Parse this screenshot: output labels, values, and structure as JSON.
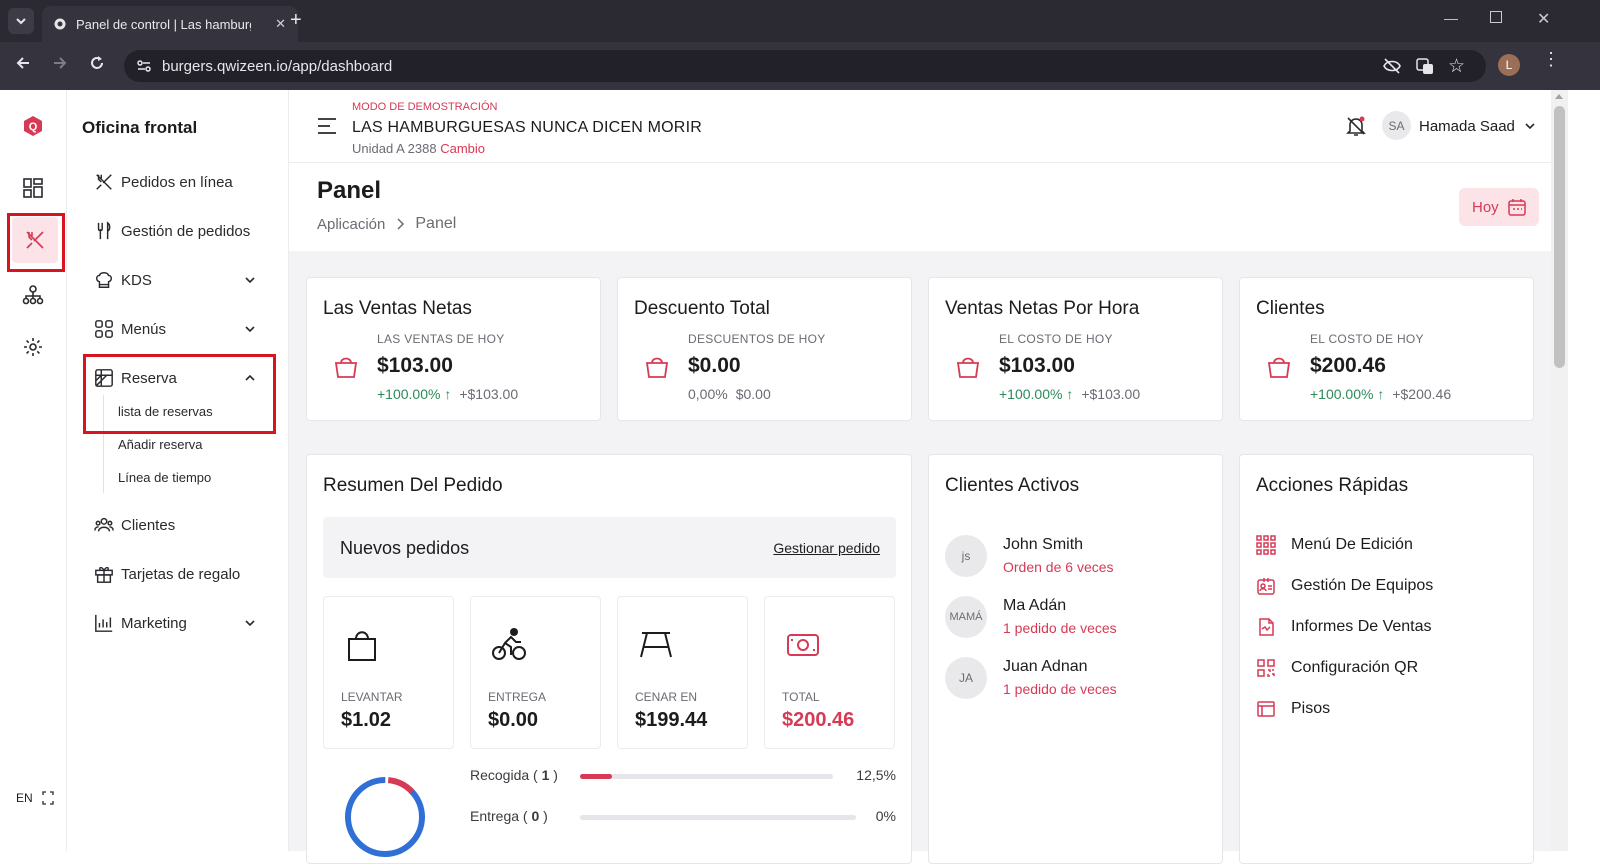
{
  "browser": {
    "tab_title": "Panel de control | Las hamburguesas nunca dicen morir",
    "url": "burgers.qwizeen.io/app/dashboard",
    "profile_initial": "L"
  },
  "sidebar": {
    "title": "Oficina frontal",
    "items": [
      {
        "label": "Pedidos en línea",
        "icon": "utensils-crossed-icon"
      },
      {
        "label": "Gestión de pedidos",
        "icon": "fork-knife-icon"
      },
      {
        "label": "KDS",
        "icon": "chef-hat-icon"
      },
      {
        "label": "Menús",
        "icon": "grid-icon"
      },
      {
        "label": "Reserva",
        "icon": "table-icon"
      },
      {
        "label": "Clientes",
        "icon": "users-icon"
      },
      {
        "label": "Tarjetas de regalo",
        "icon": "gift-icon"
      },
      {
        "label": "Marketing",
        "icon": "chart-icon"
      }
    ],
    "reserva_sub": [
      "lista de reservas",
      "Añadir reserva",
      "Línea de tiempo"
    ],
    "lang": "EN"
  },
  "header": {
    "demo_mode": "MODO DE DEMOSTRACIÓN",
    "restaurant": "LAS HAMBURGUESAS NUNCA DICEN MORIR",
    "unit": "Unidad A 2388",
    "change": "Cambio",
    "user_initials": "SA",
    "user_name": "Hamada Saad"
  },
  "page": {
    "title": "Panel",
    "breadcrumb_root": "Aplicación",
    "breadcrumb_current": "Panel",
    "today_button": "Hoy"
  },
  "kpis": [
    {
      "title": "Las Ventas Netas",
      "sub": "LAS VENTAS DE HOY",
      "value": "$103.00",
      "pct": "+100.00%",
      "abs": "+$103.00",
      "up": true
    },
    {
      "title": "Descuento Total",
      "sub": "DESCUENTOS DE HOY",
      "value": "$0.00",
      "pct": "0,00%",
      "abs": "$0.00",
      "up": false
    },
    {
      "title": "Ventas Netas Por Hora",
      "sub": "EL COSTO DE HOY",
      "value": "$103.00",
      "pct": "+100.00%",
      "abs": "+$103.00",
      "up": true
    },
    {
      "title": "Clientes",
      "sub": "EL COSTO DE HOY",
      "value": "$200.46",
      "pct": "+100.00%",
      "abs": "+$200.46",
      "up": true
    }
  ],
  "order_summary": {
    "title": "Resumen Del Pedido",
    "new_orders": "Nuevos pedidos",
    "manage": "Gestionar pedido",
    "tiles": [
      {
        "label": "LEVANTAR",
        "value": "$1.02",
        "icon": "shopping-bag-icon"
      },
      {
        "label": "ENTREGA",
        "value": "$0.00",
        "icon": "cyclist-icon"
      },
      {
        "label": "CENAR EN",
        "value": "$199.44",
        "icon": "picnic-table-icon"
      },
      {
        "label": "TOTAL",
        "value": "$200.46",
        "icon": "money-icon"
      }
    ],
    "progress": [
      {
        "label": "Recogida",
        "count": "1",
        "pct": "12,5%",
        "fraction": 0.125
      },
      {
        "label": "Entrega",
        "count": "0",
        "pct": "0%",
        "fraction": 0
      }
    ],
    "donut": {
      "dine_in_fraction": 0.875,
      "pickup_fraction": 0.125
    }
  },
  "active_clients": {
    "title": "Clientes Activos",
    "items": [
      {
        "initials": "js",
        "name": "John Smith",
        "orders": "Orden de 6 veces"
      },
      {
        "initials": "MAMÁ",
        "name": "Ma Adán",
        "orders": "1 pedido de veces"
      },
      {
        "initials": "JA",
        "name": "Juan Adnan",
        "orders": "1 pedido de veces"
      }
    ]
  },
  "quick_actions": {
    "title": "Acciones Rápidas",
    "items": [
      {
        "label": "Menú De Edición",
        "icon": "grid-dots-icon"
      },
      {
        "label": "Gestión De Equipos",
        "icon": "id-card-icon"
      },
      {
        "label": "Informes De Ventas",
        "icon": "report-icon"
      },
      {
        "label": "Configuración QR",
        "icon": "qr-code-icon"
      },
      {
        "label": "Pisos",
        "icon": "floor-icon"
      }
    ]
  },
  "colors": {
    "accent": "#d63a55",
    "green": "#2c8a5a",
    "blue": "#2f6fd6",
    "highlight": "#d8141f"
  }
}
